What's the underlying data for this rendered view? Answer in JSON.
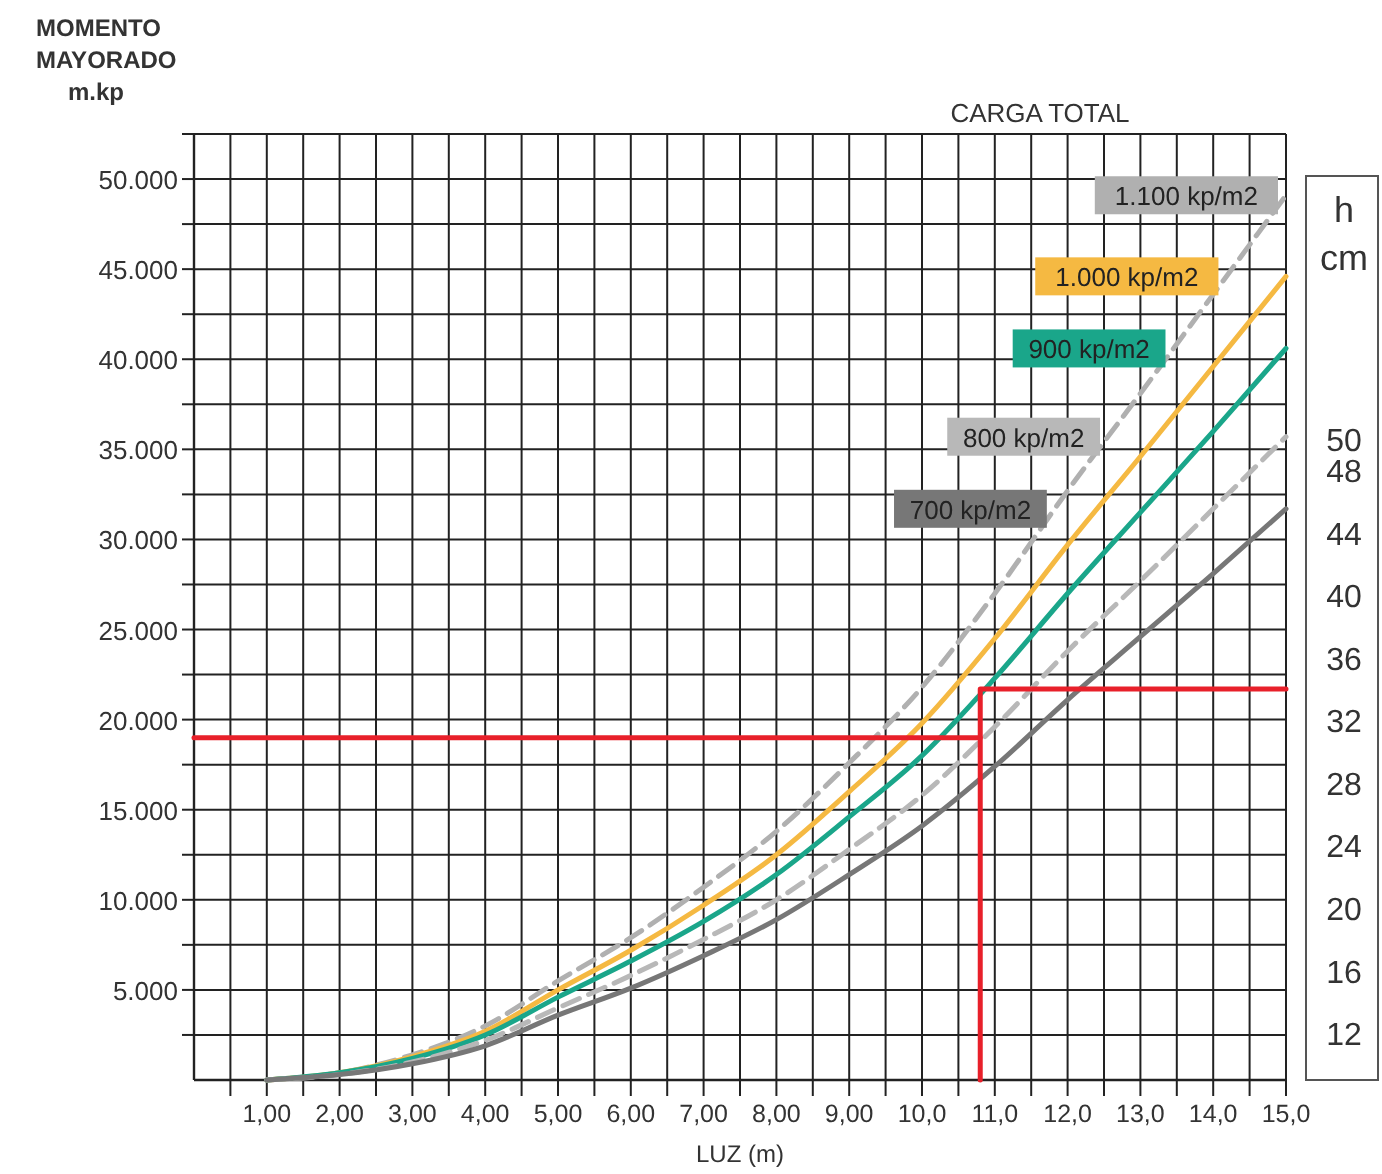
{
  "chart_data": {
    "type": "line",
    "legend_title": "CARGA TOTAL",
    "xlabel": "LUZ (m)",
    "ylabel": "MOMENTO\nMAYORADO\nm.kp",
    "y2label": "h\ncm",
    "x": [
      1,
      2,
      3,
      4,
      5,
      6,
      7,
      8,
      9,
      10,
      11,
      12,
      13,
      14,
      15
    ],
    "xlim": [
      0,
      15
    ],
    "xticks": [
      {
        "value": 0.5,
        "label": null
      },
      {
        "value": 1,
        "label": "1,00"
      },
      {
        "value": 1.5,
        "label": null
      },
      {
        "value": 2,
        "label": "2,00"
      },
      {
        "value": 2.5,
        "label": null
      },
      {
        "value": 3,
        "label": "3,00"
      },
      {
        "value": 3.5,
        "label": null
      },
      {
        "value": 4,
        "label": "4,00"
      },
      {
        "value": 4.5,
        "label": null
      },
      {
        "value": 5,
        "label": "5,00"
      },
      {
        "value": 5.5,
        "label": null
      },
      {
        "value": 6,
        "label": "6,00"
      },
      {
        "value": 6.5,
        "label": null
      },
      {
        "value": 7,
        "label": "7,00"
      },
      {
        "value": 7.5,
        "label": null
      },
      {
        "value": 8,
        "label": "8,00"
      },
      {
        "value": 8.5,
        "label": null
      },
      {
        "value": 9,
        "label": "9,00"
      },
      {
        "value": 9.5,
        "label": null
      },
      {
        "value": 10,
        "label": "10,0"
      },
      {
        "value": 10.5,
        "label": null
      },
      {
        "value": 11,
        "label": "11,0"
      },
      {
        "value": 11.5,
        "label": null
      },
      {
        "value": 12,
        "label": "12,0"
      },
      {
        "value": 12.5,
        "label": null
      },
      {
        "value": 13,
        "label": "13,0"
      },
      {
        "value": 13.5,
        "label": null
      },
      {
        "value": 14,
        "label": "14,0"
      },
      {
        "value": 14.5,
        "label": null
      },
      {
        "value": 15,
        "label": "15,0"
      }
    ],
    "ylim": [
      0,
      52500
    ],
    "yticks": [
      {
        "value": 2500,
        "label": null
      },
      {
        "value": 5000,
        "label": "5.000"
      },
      {
        "value": 7500,
        "label": null
      },
      {
        "value": 10000,
        "label": "10.000"
      },
      {
        "value": 12500,
        "label": null
      },
      {
        "value": 15000,
        "label": "15.000"
      },
      {
        "value": 17500,
        "label": null
      },
      {
        "value": 20000,
        "label": "20.000"
      },
      {
        "value": 22500,
        "label": null
      },
      {
        "value": 25000,
        "label": "25.000"
      },
      {
        "value": 27500,
        "label": null
      },
      {
        "value": 30000,
        "label": "30.000"
      },
      {
        "value": 32500,
        "label": null
      },
      {
        "value": 35000,
        "label": "35.000"
      },
      {
        "value": 37500,
        "label": null
      },
      {
        "value": 40000,
        "label": "40.000"
      },
      {
        "value": 42500,
        "label": null
      },
      {
        "value": 45000,
        "label": "45.000"
      },
      {
        "value": 47500,
        "label": null
      },
      {
        "value": 50000,
        "label": "50.000"
      },
      {
        "value": 52500,
        "label": null
      }
    ],
    "y2lim": [
      9,
      69.5
    ],
    "y2ticks": [
      12,
      16,
      20,
      24,
      28,
      32,
      36,
      40,
      44,
      48,
      50
    ],
    "grid": true,
    "series": [
      {
        "name": "1.100 kp/m2",
        "color": "#b0b0b0",
        "line_style": "dashed",
        "values": [
          0,
          400,
          1400,
          3000,
          5500,
          7900,
          10700,
          13800,
          17600,
          21800,
          27000,
          32700,
          38100,
          43600,
          49100
        ]
      },
      {
        "name": "1.000 kp/m2",
        "color": "#f5b942",
        "values": [
          0,
          400,
          1300,
          2700,
          5000,
          7200,
          9700,
          12500,
          16000,
          19800,
          24500,
          29700,
          34600,
          39600,
          44600
        ]
      },
      {
        "name": "900 kp/m2",
        "color": "#1aa68a",
        "values": [
          0,
          400,
          1200,
          2500,
          4600,
          6600,
          8800,
          11400,
          14600,
          18000,
          22300,
          27000,
          31500,
          36000,
          40600
        ]
      },
      {
        "name": "800 kp/m2",
        "color": "#b8b8b8",
        "line_style": "dashed",
        "values": [
          0,
          300,
          1000,
          2200,
          4000,
          5800,
          7800,
          10000,
          12800,
          15800,
          19600,
          23800,
          27700,
          31700,
          35700
        ]
      },
      {
        "name": "700 kp/m2",
        "color": "#777777",
        "values": [
          0,
          300,
          900,
          1900,
          3600,
          5100,
          6900,
          8900,
          11400,
          14100,
          17400,
          21100,
          24600,
          28100,
          31700
        ]
      },
      {
        "color": "#e8202a",
        "x": [
          0,
          10.8
        ],
        "values": [
          19000,
          19000
        ]
      },
      {
        "color": "#e8202a",
        "x": [
          10.8,
          10.8,
          15
        ],
        "values": [
          0,
          21700,
          21700
        ]
      }
    ]
  }
}
